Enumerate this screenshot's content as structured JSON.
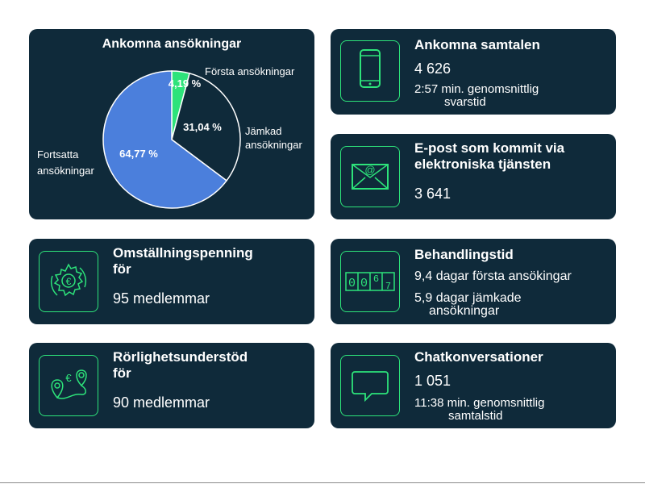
{
  "pie_card": {
    "labels": {
      "forsta": "Första ansökningar",
      "jamkad_1": "Jämkad",
      "jamkad_2": "ansökningar",
      "fortsatta_1": "Fortsatta",
      "fortsatta_2": "ansökningar"
    }
  },
  "chart_data": {
    "type": "pie",
    "title": "Ankomna ansökningar",
    "slices": [
      {
        "name": "Första ansökningar",
        "value": 4.19,
        "label": "4,19 %",
        "color": "#2de37a"
      },
      {
        "name": "Jämkad ansökningar",
        "value": 31.04,
        "label": "31,04 %",
        "color": "#0f2a3a"
      },
      {
        "name": "Fortsatta ansökningar",
        "value": 64.77,
        "label": "64,77 %",
        "color": "#4b7fdc"
      }
    ]
  },
  "calls": {
    "title": "Ankomna samtalen",
    "value": "4 626",
    "note_1": "2:57 min. genomsnittlig",
    "note_2": "svarstid",
    "icon": "phone-icon"
  },
  "email": {
    "title_1": "E-post som kommit via",
    "title_2": "elektroniska tjänsten",
    "value": "3 641",
    "icon": "envelope-icon"
  },
  "omstallning": {
    "title_1": "Omställningspenning",
    "title_2": "för",
    "value": "95 medlemmar",
    "icon": "euro-cycle-icon"
  },
  "behandling": {
    "title": "Behandlingstid",
    "line1": "9,4 dagar första ansökingar",
    "line2_1": "5,9 dagar jämkade",
    "line2_2": "ansökningar",
    "counter": [
      "0",
      "0",
      "6",
      "7"
    ],
    "icon": "counter-icon"
  },
  "rorlighet": {
    "title_1": "Rörlighetsunderstöd",
    "title_2": "för",
    "value": "90 medlemmar",
    "icon": "map-route-icon"
  },
  "chat": {
    "title": "Chatkonversationer",
    "value": "1 051",
    "note_1": "11:38 min. genomsnittlig",
    "note_2": "samtalstid",
    "icon": "chat-bubble-icon"
  },
  "colors": {
    "card_bg": "#0f2a3a",
    "accent": "#2de37a",
    "pie_blue": "#4b7fdc"
  }
}
